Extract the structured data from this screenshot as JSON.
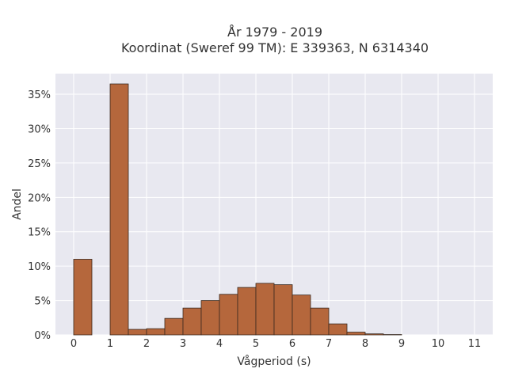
{
  "chart_data": {
    "type": "bar",
    "title": "År 1979 - 2019",
    "subtitle": "Koordinat (Sweref 99 TM): E 339363, N 6314340",
    "xlabel": "Vågperiod (s)",
    "ylabel": "Andel",
    "xlim": [
      -0.5,
      11.5
    ],
    "ylim": [
      0,
      38
    ],
    "x_ticks": [
      0,
      1,
      2,
      3,
      4,
      5,
      6,
      7,
      8,
      9,
      10,
      11
    ],
    "y_ticks": [
      0,
      5,
      10,
      15,
      20,
      25,
      30,
      35
    ],
    "y_tick_labels": [
      "0%",
      "5%",
      "10%",
      "15%",
      "20%",
      "25%",
      "30%",
      "35%"
    ],
    "bin_width": 0.5,
    "bins": [
      {
        "x0": 0.0,
        "value": 11.0
      },
      {
        "x0": 1.0,
        "value": 36.5
      },
      {
        "x0": 1.5,
        "value": 0.8
      },
      {
        "x0": 2.0,
        "value": 0.9
      },
      {
        "x0": 2.5,
        "value": 2.4
      },
      {
        "x0": 3.0,
        "value": 3.9
      },
      {
        "x0": 3.5,
        "value": 5.0
      },
      {
        "x0": 4.0,
        "value": 5.9
      },
      {
        "x0": 4.5,
        "value": 6.9
      },
      {
        "x0": 5.0,
        "value": 7.5
      },
      {
        "x0": 5.5,
        "value": 7.3
      },
      {
        "x0": 6.0,
        "value": 5.8
      },
      {
        "x0": 6.5,
        "value": 3.9
      },
      {
        "x0": 7.0,
        "value": 1.6
      },
      {
        "x0": 7.5,
        "value": 0.4
      },
      {
        "x0": 8.0,
        "value": 0.15
      },
      {
        "x0": 8.5,
        "value": 0.05
      }
    ],
    "grid": true,
    "colors": {
      "bar_fill": "#b5673c",
      "bar_stroke": "#3a2a20",
      "plot_bg": "#e8e8f0",
      "grid": "#ffffff"
    }
  }
}
